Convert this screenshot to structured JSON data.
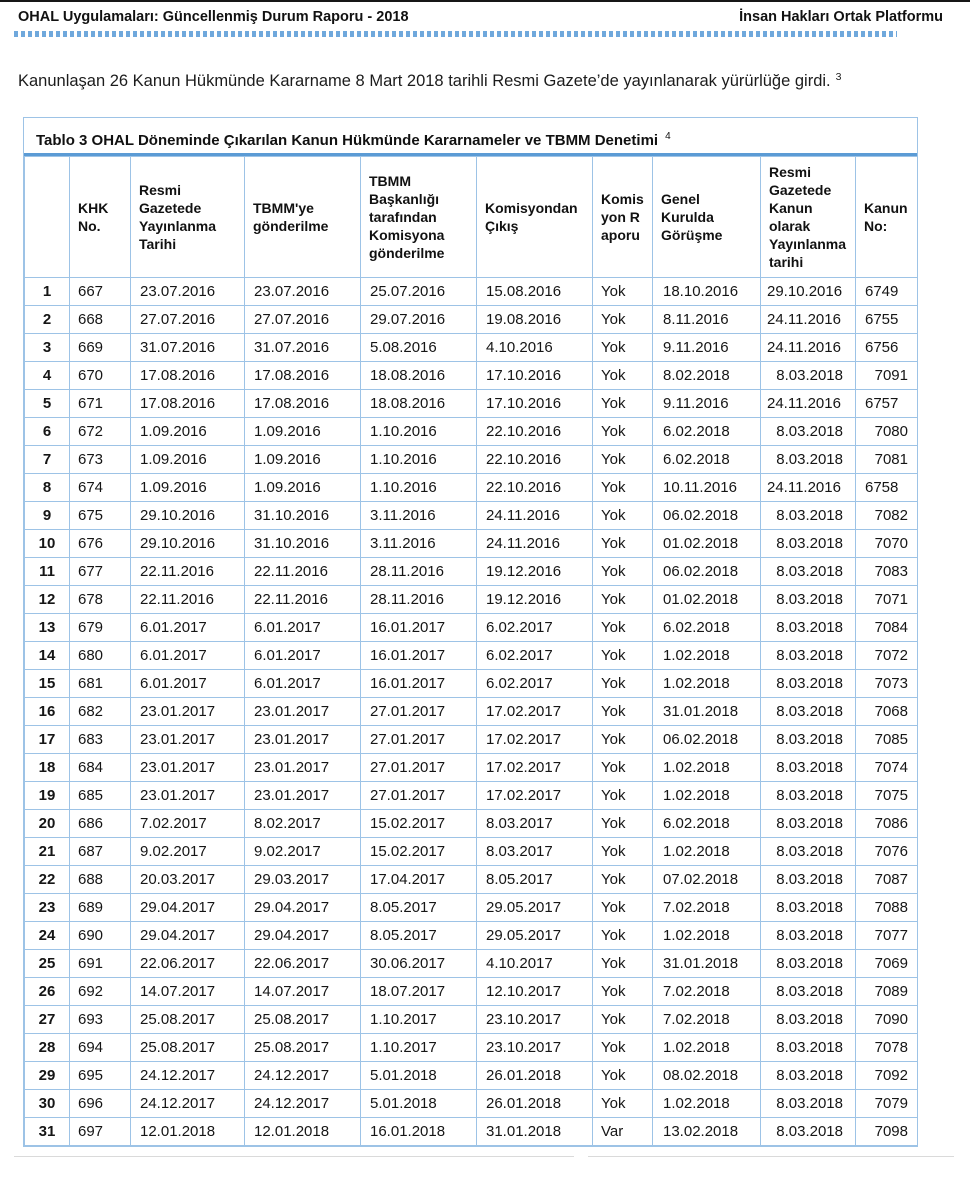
{
  "page_header": {
    "report_title": "OHAL Uygulamaları: Güncellenmiş Durum Raporu - 2018",
    "organization": "İnsan Hakları Ortak Platformu"
  },
  "intro": {
    "text": "Kanunlaşan 26 Kanun Hükmünde Kararname 8 Mart 2018 tarihli Resmi Gazete’de yayınlanarak yürürlüğe girdi.",
    "footnote_ref": "3"
  },
  "table": {
    "title": "Tablo 3 OHAL Döneminde Çıkarılan Kanun Hükmünde Kararnameler ve TBMM Denetimi",
    "title_footnote_ref": "4",
    "columns": [
      "",
      "KHK No.",
      "Resmi Gazetede Yayınlanma Tarihi",
      "TBMM'ye gönderilme",
      "TBMM Başkanlığı tarafından Komisyona gönderilme",
      "Komisyondan Çıkış",
      "Komisyon Raporu",
      "Genel Kurulda Görüşme",
      "Resmi Gazetede Kanun olarak Yayınlanma tarihi",
      "Kanun No:"
    ],
    "rows": [
      [
        "1",
        "667",
        "23.07.2016",
        "23.07.2016",
        "25.07.2016",
        "15.08.2016",
        "Yok",
        "18.10.2016",
        "29.10.2016",
        "6749"
      ],
      [
        "2",
        "668",
        "27.07.2016",
        "27.07.2016",
        "29.07.2016",
        "19.08.2016",
        "Yok",
        "8.11.2016",
        "24.11.2016",
        "6755"
      ],
      [
        "3",
        "669",
        "31.07.2016",
        "31.07.2016",
        "5.08.2016",
        "4.10.2016",
        "Yok",
        "9.11.2016",
        "24.11.2016",
        "6756"
      ],
      [
        "4",
        "670",
        "17.08.2016",
        "17.08.2016",
        "18.08.2016",
        "17.10.2016",
        "Yok",
        "8.02.2018",
        "8.03.2018",
        "7091"
      ],
      [
        "5",
        "671",
        "17.08.2016",
        "17.08.2016",
        "18.08.2016",
        "17.10.2016",
        "Yok",
        "9.11.2016",
        "24.11.2016",
        "6757"
      ],
      [
        "6",
        "672",
        "1.09.2016",
        "1.09.2016",
        "1.10.2016",
        "22.10.2016",
        "Yok",
        "6.02.2018",
        "8.03.2018",
        "7080"
      ],
      [
        "7",
        "673",
        "1.09.2016",
        "1.09.2016",
        "1.10.2016",
        "22.10.2016",
        "Yok",
        "6.02.2018",
        "8.03.2018",
        "7081"
      ],
      [
        "8",
        "674",
        "1.09.2016",
        "1.09.2016",
        "1.10.2016",
        "22.10.2016",
        "Yok",
        "10.11.2016",
        "24.11.2016",
        "6758"
      ],
      [
        "9",
        "675",
        "29.10.2016",
        "31.10.2016",
        "3.11.2016",
        "24.11.2016",
        "Yok",
        "06.02.2018",
        "8.03.2018",
        "7082"
      ],
      [
        "10",
        "676",
        "29.10.2016",
        "31.10.2016",
        "3.11.2016",
        "24.11.2016",
        "Yok",
        "01.02.2018",
        "8.03.2018",
        "7070"
      ],
      [
        "11",
        "677",
        "22.11.2016",
        "22.11.2016",
        "28.11.2016",
        "19.12.2016",
        "Yok",
        "06.02.2018",
        "8.03.2018",
        "7083"
      ],
      [
        "12",
        "678",
        "22.11.2016",
        "22.11.2016",
        "28.11.2016",
        "19.12.2016",
        "Yok",
        "01.02.2018",
        "8.03.2018",
        "7071"
      ],
      [
        "13",
        "679",
        "6.01.2017",
        "6.01.2017",
        "16.01.2017",
        "6.02.2017",
        "Yok",
        "6.02.2018",
        "8.03.2018",
        "7084"
      ],
      [
        "14",
        "680",
        "6.01.2017",
        "6.01.2017",
        "16.01.2017",
        "6.02.2017",
        "Yok",
        "1.02.2018",
        "8.03.2018",
        "7072"
      ],
      [
        "15",
        "681",
        "6.01.2017",
        "6.01.2017",
        "16.01.2017",
        "6.02.2017",
        "Yok",
        "1.02.2018",
        "8.03.2018",
        "7073"
      ],
      [
        "16",
        "682",
        "23.01.2017",
        "23.01.2017",
        "27.01.2017",
        "17.02.2017",
        "Yok",
        "31.01.2018",
        "8.03.2018",
        "7068"
      ],
      [
        "17",
        "683",
        "23.01.2017",
        "23.01.2017",
        "27.01.2017",
        "17.02.2017",
        "Yok",
        "06.02.2018",
        "8.03.2018",
        "7085"
      ],
      [
        "18",
        "684",
        "23.01.2017",
        "23.01.2017",
        "27.01.2017",
        "17.02.2017",
        "Yok",
        "1.02.2018",
        "8.03.2018",
        "7074"
      ],
      [
        "19",
        "685",
        "23.01.2017",
        "23.01.2017",
        "27.01.2017",
        "17.02.2017",
        "Yok",
        "1.02.2018",
        "8.03.2018",
        "7075"
      ],
      [
        "20",
        "686",
        "7.02.2017",
        "8.02.2017",
        "15.02.2017",
        "8.03.2017",
        "Yok",
        "6.02.2018",
        "8.03.2018",
        "7086"
      ],
      [
        "21",
        "687",
        "9.02.2017",
        "9.02.2017",
        "15.02.2017",
        "8.03.2017",
        "Yok",
        "1.02.2018",
        "8.03.2018",
        "7076"
      ],
      [
        "22",
        "688",
        "20.03.2017",
        "29.03.2017",
        "17.04.2017",
        "8.05.2017",
        "Yok",
        "07.02.2018",
        "8.03.2018",
        "7087"
      ],
      [
        "23",
        "689",
        "29.04.2017",
        "29.04.2017",
        "8.05.2017",
        "29.05.2017",
        "Yok",
        "7.02.2018",
        "8.03.2018",
        "7088"
      ],
      [
        "24",
        "690",
        "29.04.2017",
        "29.04.2017",
        "8.05.2017",
        "29.05.2017",
        "Yok",
        "1.02.2018",
        "8.03.2018",
        "7077"
      ],
      [
        "25",
        "691",
        "22.06.2017",
        "22.06.2017",
        "30.06.2017",
        "4.10.2017",
        "Yok",
        "31.01.2018",
        "8.03.2018",
        "7069"
      ],
      [
        "26",
        "692",
        "14.07.2017",
        "14.07.2017",
        "18.07.2017",
        "12.10.2017",
        "Yok",
        "7.02.2018",
        "8.03.2018",
        "7089"
      ],
      [
        "27",
        "693",
        "25.08.2017",
        "25.08.2017",
        "1.10.2017",
        "23.10.2017",
        "Yok",
        "7.02.2018",
        "8.03.2018",
        "7090"
      ],
      [
        "28",
        "694",
        "25.08.2017",
        "25.08.2017",
        "1.10.2017",
        "23.10.2017",
        "Yok",
        "1.02.2018",
        "8.03.2018",
        "7078"
      ],
      [
        "29",
        "695",
        "24.12.2017",
        "24.12.2017",
        "5.01.2018",
        "26.01.2018",
        "Yok",
        "08.02.2018",
        "8.03.2018",
        "7092"
      ],
      [
        "30",
        "696",
        "24.12.2017",
        "24.12.2017",
        "5.01.2018",
        "26.01.2018",
        "Yok",
        "1.02.2018",
        "8.03.2018",
        "7079"
      ],
      [
        "31",
        "697",
        "12.01.2018",
        "12.01.2018",
        "16.01.2018",
        "31.01.2018",
        "Var",
        "13.02.2018",
        "8.03.2018",
        "7098"
      ]
    ]
  },
  "colors": {
    "accent_blue": "#5B9BD5",
    "grid_blue": "#9DC3E6",
    "dotted_blue": "#6FA8DC"
  }
}
